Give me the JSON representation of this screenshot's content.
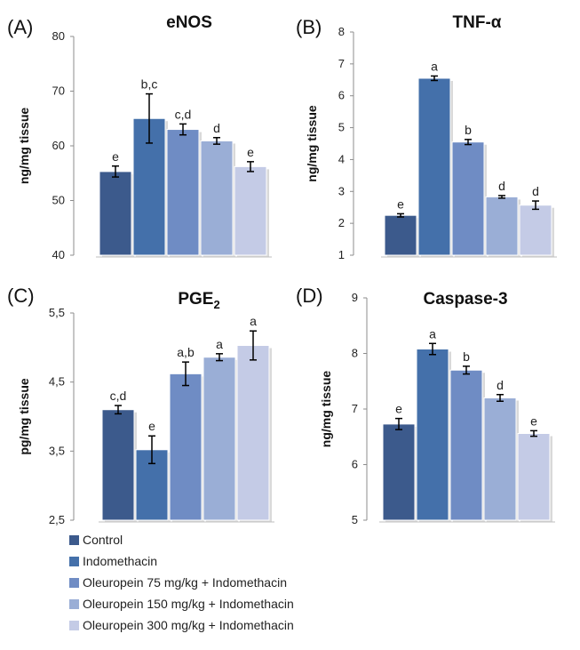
{
  "chart_data": [
    {
      "type": "bar",
      "panel": "(A)",
      "title": "eNOS",
      "ylabel": "ng/mg tissue",
      "ylim": [
        40,
        80
      ],
      "yticks": [
        "40",
        "50",
        "60",
        "70",
        "80"
      ],
      "series": [
        {
          "name": "Control",
          "value": 55.3,
          "error": 1.0,
          "label": "e"
        },
        {
          "name": "Indomethacin",
          "value": 65.0,
          "error": 4.5,
          "label": "b,c"
        },
        {
          "name": "Oleuropein 75 mg/kg + Indomethacin",
          "value": 63.0,
          "error": 1.0,
          "label": "c,d"
        },
        {
          "name": "Oleuropein 150 mg/kg + Indomethacin",
          "value": 60.9,
          "error": 0.6,
          "label": "d"
        },
        {
          "name": "Oleuropein 300 mg/kg + Indomethacin",
          "value": 56.2,
          "error": 0.9,
          "label": "e"
        }
      ]
    },
    {
      "type": "bar",
      "panel": "(B)",
      "title": "TNF-α",
      "ylabel": "ng/mg tissue",
      "ylim": [
        1,
        8
      ],
      "yticks": [
        "1",
        "2",
        "3",
        "4",
        "5",
        "6",
        "7",
        "8"
      ],
      "series": [
        {
          "name": "Control",
          "value": 2.25,
          "error": 0.05,
          "label": "e"
        },
        {
          "name": "Indomethacin",
          "value": 6.55,
          "error": 0.07,
          "label": "a"
        },
        {
          "name": "Oleuropein 75 mg/kg + Indomethacin",
          "value": 4.55,
          "error": 0.08,
          "label": "b"
        },
        {
          "name": "Oleuropein 150 mg/kg + Indomethacin",
          "value": 2.83,
          "error": 0.04,
          "label": "d"
        },
        {
          "name": "Oleuropein 300 mg/kg + Indomethacin",
          "value": 2.57,
          "error": 0.13,
          "label": "d"
        }
      ]
    },
    {
      "type": "bar",
      "panel": "(C)",
      "title": "PGE",
      "title_sub": "2",
      "ylabel": "pg/mg tissue",
      "ylim": [
        2.5,
        5.5
      ],
      "yticks": [
        "2,5",
        "3,5",
        "4,5",
        "5,5"
      ],
      "series": [
        {
          "name": "Control",
          "value": 4.1,
          "error": 0.06,
          "label": "c,d"
        },
        {
          "name": "Indomethacin",
          "value": 3.52,
          "error": 0.2,
          "label": "e"
        },
        {
          "name": "Oleuropein 75 mg/kg + Indomethacin",
          "value": 4.62,
          "error": 0.17,
          "label": "a,b"
        },
        {
          "name": "Oleuropein 150 mg/kg + Indomethacin",
          "value": 4.86,
          "error": 0.05,
          "label": "a"
        },
        {
          "name": "Oleuropein 300 mg/kg + Indomethacin",
          "value": 5.03,
          "error": 0.21,
          "label": "a"
        }
      ]
    },
    {
      "type": "bar",
      "panel": "(D)",
      "title": "Caspase-3",
      "ylabel": "ng/mg tissue",
      "ylim": [
        5,
        9
      ],
      "yticks": [
        "5",
        "6",
        "7",
        "8",
        "9"
      ],
      "series": [
        {
          "name": "Control",
          "value": 6.73,
          "error": 0.1,
          "label": "e"
        },
        {
          "name": "Indomethacin",
          "value": 8.08,
          "error": 0.1,
          "label": "a"
        },
        {
          "name": "Oleuropein 75 mg/kg + Indomethacin",
          "value": 7.7,
          "error": 0.07,
          "label": "b"
        },
        {
          "name": "Oleuropein 150 mg/kg + Indomethacin",
          "value": 7.2,
          "error": 0.06,
          "label": "d"
        },
        {
          "name": "Oleuropein 300 mg/kg + Indomethacin",
          "value": 6.56,
          "error": 0.05,
          "label": "e"
        }
      ]
    }
  ],
  "legend": [
    {
      "label": "Control",
      "color": "#3c5a8c"
    },
    {
      "label": "Indomethacin",
      "color": "#4470aa"
    },
    {
      "label": "Oleuropein 75 mg/kg + Indomethacin",
      "color": "#6f8cc4"
    },
    {
      "label": "Oleuropein 150 mg/kg + Indomethacin",
      "color": "#9aaed6"
    },
    {
      "label": "Oleuropein 300 mg/kg + Indomethacin",
      "color": "#c4cbe6"
    }
  ]
}
